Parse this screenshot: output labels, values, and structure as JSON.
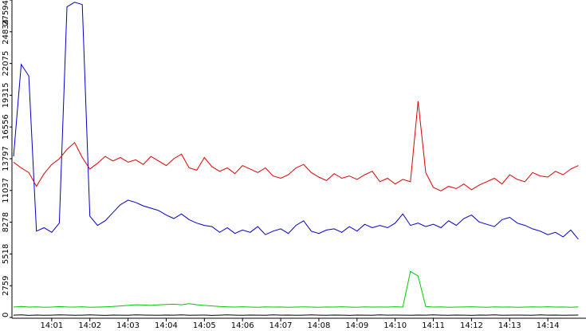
{
  "chart_data": {
    "type": "line",
    "x": [
      840,
      840.2,
      840.4,
      840.6,
      840.8,
      841,
      841.2,
      841.4,
      841.6,
      841.8,
      842,
      842.2,
      842.4,
      842.6,
      842.8,
      843,
      843.2,
      843.4,
      843.6,
      843.8,
      844,
      844.2,
      844.4,
      844.6,
      844.8,
      845,
      845.2,
      845.4,
      845.6,
      845.8,
      846,
      846.2,
      846.4,
      846.6,
      846.8,
      847,
      847.2,
      847.4,
      847.6,
      847.8,
      848,
      848.2,
      848.4,
      848.6,
      848.8,
      849,
      849.2,
      849.4,
      849.6,
      849.8,
      850,
      850.2,
      850.4,
      850.6,
      850.8,
      851,
      851.2,
      851.4,
      851.6,
      851.8,
      852,
      852.2,
      852.4,
      852.6,
      852.8,
      853,
      853.2,
      853.4,
      853.6,
      853.8,
      854,
      854.2,
      854.4,
      854.6,
      854.8
    ],
    "series": [
      {
        "color": "#0000c8",
        "values": [
          14000,
          22000,
          21000,
          7500,
          7800,
          7400,
          8200,
          27000,
          27400,
          27200,
          8800,
          8000,
          8400,
          9100,
          9800,
          10200,
          10000,
          9700,
          9500,
          9300,
          8900,
          8600,
          9000,
          8500,
          8200,
          8000,
          7900,
          7400,
          7800,
          7300,
          7600,
          7400,
          7900,
          7200,
          7500,
          7700,
          7300,
          8000,
          8400,
          7500,
          7300,
          7600,
          7700,
          7400,
          7900,
          7500,
          8100,
          7800,
          8000,
          7800,
          8200,
          9000,
          8000,
          8200,
          7900,
          8100,
          7800,
          8400,
          8000,
          8600,
          8900,
          8300,
          8100,
          7900,
          8500,
          8700,
          8200,
          8000,
          7700,
          7500,
          7200,
          7400,
          7000,
          7600,
          6800
        ]
      },
      {
        "color": "#dc0000",
        "values": [
          13500,
          13000,
          12600,
          11400,
          12500,
          13300,
          13800,
          14600,
          15200,
          13900,
          12900,
          13400,
          14000,
          13600,
          13900,
          13500,
          13700,
          13300,
          14000,
          13600,
          13200,
          13800,
          14200,
          13000,
          12800,
          13900,
          13100,
          12700,
          13000,
          12500,
          13200,
          12900,
          12600,
          13000,
          12300,
          12100,
          12400,
          13000,
          13300,
          12600,
          12200,
          11900,
          12500,
          12100,
          12300,
          12000,
          12400,
          12700,
          11800,
          12100,
          11600,
          12000,
          11800,
          18800,
          12600,
          11300,
          11000,
          11400,
          11200,
          11600,
          11100,
          11500,
          11800,
          12100,
          11600,
          12400,
          12000,
          11800,
          12600,
          12300,
          12200,
          12700,
          12400,
          12900,
          13200
        ]
      },
      {
        "color": "#00c800",
        "values": [
          900,
          950,
          900,
          920,
          880,
          900,
          940,
          910,
          900,
          930,
          880,
          900,
          920,
          950,
          1000,
          1050,
          1100,
          1080,
          1050,
          1100,
          1120,
          1150,
          1100,
          1200,
          1100,
          1050,
          1000,
          950,
          920,
          900,
          930,
          900,
          880,
          920,
          900,
          910,
          890,
          900,
          920,
          900,
          880,
          910,
          900,
          930,
          900,
          890,
          920,
          900,
          910,
          900,
          930,
          900,
          4000,
          3600,
          950,
          900,
          920,
          880,
          900,
          910,
          930,
          900,
          890,
          920,
          900,
          910,
          880,
          900,
          920,
          900,
          930,
          900,
          910,
          890,
          920
        ]
      },
      {
        "color": "#000000",
        "values": [
          200,
          220,
          180,
          210,
          190,
          200,
          230,
          210,
          190,
          200,
          220,
          200,
          180,
          210,
          200,
          190,
          220,
          210,
          200,
          190,
          210,
          200,
          220,
          190,
          200,
          210,
          180,
          200,
          220,
          200,
          190,
          210,
          200,
          190,
          220,
          200,
          210,
          190,
          200,
          220,
          200,
          190,
          210,
          200,
          180,
          210,
          200,
          190,
          220,
          200,
          210,
          200,
          190,
          210,
          200,
          220,
          200,
          190,
          210,
          200,
          180,
          210,
          200,
          220,
          190,
          200,
          210,
          200,
          190,
          220,
          200,
          210,
          190,
          200,
          210
        ]
      }
    ],
    "xlim": [
      840,
      855
    ],
    "xticks": [
      {
        "value": 841,
        "label": "14:01"
      },
      {
        "value": 842,
        "label": "14:02"
      },
      {
        "value": 843,
        "label": "14:03"
      },
      {
        "value": 844,
        "label": "14:04"
      },
      {
        "value": 845,
        "label": "14:05"
      },
      {
        "value": 846,
        "label": "14:06"
      },
      {
        "value": 847,
        "label": "14:07"
      },
      {
        "value": 848,
        "label": "14:08"
      },
      {
        "value": 849,
        "label": "14:09"
      },
      {
        "value": 850,
        "label": "14:10"
      },
      {
        "value": 851,
        "label": "14:11"
      },
      {
        "value": 852,
        "label": "14:12"
      },
      {
        "value": 853,
        "label": "14:13"
      },
      {
        "value": 854,
        "label": "14:14"
      }
    ],
    "ylim": [
      0,
      27594
    ],
    "yticks": [
      0,
      2759,
      5518,
      8278,
      11037,
      13797,
      16556,
      19315,
      22075,
      24834,
      27594
    ]
  }
}
